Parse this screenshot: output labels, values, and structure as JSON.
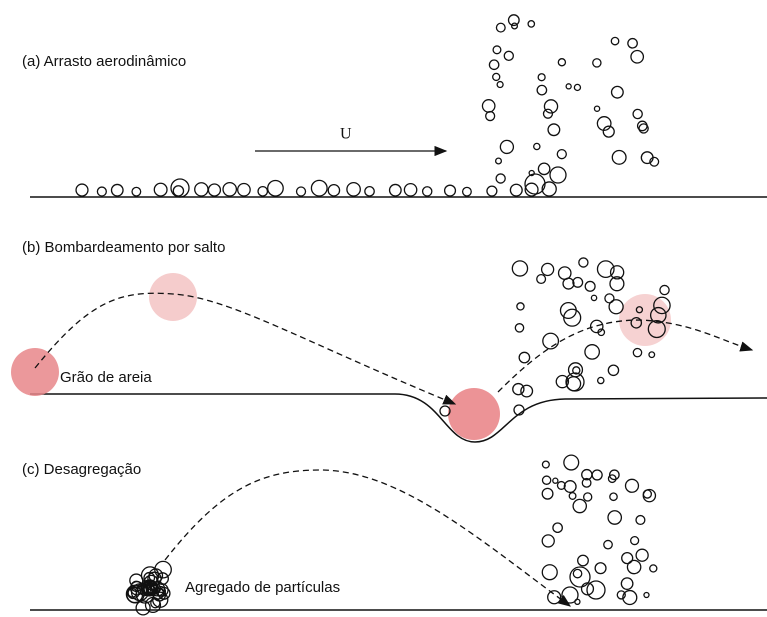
{
  "panels": [
    {
      "title": "(a) Arrasto aerodinâmico",
      "wind_label": "U"
    },
    {
      "title": "(b) Bombardeamento por salto",
      "grain_label": "Grão de areia"
    },
    {
      "title": "(c) Desagregação",
      "aggregate_label": "Agregado de partículas"
    }
  ]
}
